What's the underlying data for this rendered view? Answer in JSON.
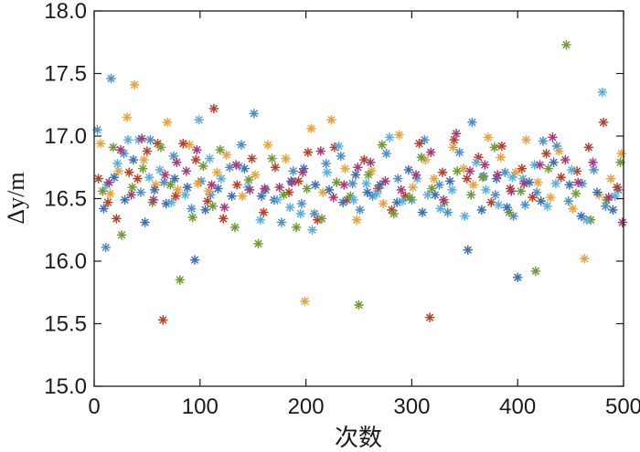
{
  "chart_data": {
    "type": "scatter",
    "title": "",
    "xlabel": "次数",
    "ylabel": "Δy/m",
    "xlim": [
      0,
      500
    ],
    "ylim": [
      15.0,
      18.0
    ],
    "x_ticks": [
      "0",
      "100",
      "200",
      "300",
      "400",
      "500"
    ],
    "y_ticks": [
      "15.0",
      "15.5",
      "16.0",
      "16.5",
      "17.0",
      "17.5",
      "18.0"
    ],
    "grid": false,
    "legend": "none",
    "marker": "asterisk",
    "series": [
      {
        "color": "#4f8fc6",
        "points": [
          [
            3,
            17.05
          ],
          [
            11,
            16.11
          ],
          [
            16,
            17.46
          ],
          [
            28,
            16.86
          ],
          [
            44,
            16.55
          ],
          [
            53,
            16.97
          ],
          [
            66,
            16.63
          ],
          [
            75,
            16.84
          ],
          [
            92,
            16.42
          ],
          [
            101,
            16.64
          ],
          [
            110,
            16.53
          ],
          [
            128,
            16.75
          ],
          [
            139,
            16.93
          ],
          [
            151,
            17.18
          ],
          [
            162,
            16.57
          ],
          [
            177,
            16.31
          ],
          [
            188,
            16.72
          ],
          [
            196,
            16.46
          ],
          [
            208,
            16.38
          ],
          [
            219,
            16.78
          ],
          [
            233,
            16.84
          ],
          [
            244,
            16.62
          ],
          [
            251,
            16.41
          ],
          [
            263,
            16.52
          ],
          [
            276,
            16.86
          ],
          [
            287,
            16.66
          ],
          [
            300,
            16.49
          ],
          [
            312,
            16.97
          ],
          [
            326,
            16.61
          ],
          [
            334,
            16.39
          ],
          [
            345,
            16.87
          ],
          [
            357,
            17.11
          ],
          [
            368,
            16.68
          ],
          [
            379,
            16.53
          ],
          [
            388,
            16.71
          ],
          [
            396,
            16.36
          ],
          [
            407,
            16.45
          ],
          [
            418,
            16.55
          ],
          [
            424,
            16.96
          ],
          [
            437,
            16.92
          ],
          [
            448,
            16.48
          ],
          [
            461,
            16.62
          ],
          [
            472,
            16.73
          ],
          [
            483,
            16.44
          ],
          [
            495,
            16.57
          ]
        ]
      },
      {
        "color": "#e8a33d",
        "points": [
          [
            6,
            16.94
          ],
          [
            15,
            16.54
          ],
          [
            23,
            16.72
          ],
          [
            31,
            17.15
          ],
          [
            38,
            17.41
          ],
          [
            47,
            16.81
          ],
          [
            58,
            16.61
          ],
          [
            69,
            17.11
          ],
          [
            79,
            16.57
          ],
          [
            90,
            16.93
          ],
          [
            98,
            16.62
          ],
          [
            108,
            16.56
          ],
          [
            116,
            16.71
          ],
          [
            125,
            16.85
          ],
          [
            140,
            16.52
          ],
          [
            152,
            16.69
          ],
          [
            164,
            16.93
          ],
          [
            181,
            16.82
          ],
          [
            199,
            15.68
          ],
          [
            205,
            17.06
          ],
          [
            216,
            16.55
          ],
          [
            224,
            17.13
          ],
          [
            237,
            16.74
          ],
          [
            248,
            16.33
          ],
          [
            262,
            16.72
          ],
          [
            273,
            16.46
          ],
          [
            288,
            17.01
          ],
          [
            301,
            16.59
          ],
          [
            313,
            16.81
          ],
          [
            321,
            16.66
          ],
          [
            339,
            16.91
          ],
          [
            349,
            16.74
          ],
          [
            358,
            16.61
          ],
          [
            372,
            16.99
          ],
          [
            384,
            16.83
          ],
          [
            398,
            16.71
          ],
          [
            408,
            16.97
          ],
          [
            419,
            16.63
          ],
          [
            431,
            16.51
          ],
          [
            439,
            16.88
          ],
          [
            452,
            16.42
          ],
          [
            463,
            16.02
          ],
          [
            477,
            16.53
          ],
          [
            488,
            16.66
          ],
          [
            498,
            16.86
          ]
        ]
      },
      {
        "color": "#b8412b",
        "points": [
          [
            4,
            16.66
          ],
          [
            13,
            16.47
          ],
          [
            21,
            16.34
          ],
          [
            33,
            16.71
          ],
          [
            41,
            16.66
          ],
          [
            50,
            16.88
          ],
          [
            60,
            16.94
          ],
          [
            65,
            15.53
          ],
          [
            77,
            16.52
          ],
          [
            84,
            16.94
          ],
          [
            96,
            16.81
          ],
          [
            107,
            16.48
          ],
          [
            113,
            17.22
          ],
          [
            122,
            16.34
          ],
          [
            135,
            16.61
          ],
          [
            149,
            16.82
          ],
          [
            160,
            16.39
          ],
          [
            171,
            16.75
          ],
          [
            184,
            16.55
          ],
          [
            193,
            16.64
          ],
          [
            202,
            16.87
          ],
          [
            211,
            16.33
          ],
          [
            227,
            16.91
          ],
          [
            239,
            16.49
          ],
          [
            255,
            16.81
          ],
          [
            268,
            16.58
          ],
          [
            281,
            16.41
          ],
          [
            294,
            16.52
          ],
          [
            307,
            16.94
          ],
          [
            317,
            15.55
          ],
          [
            329,
            16.71
          ],
          [
            340,
            16.97
          ],
          [
            352,
            16.66
          ],
          [
            363,
            16.83
          ],
          [
            375,
            16.47
          ],
          [
            385,
            16.92
          ],
          [
            393,
            16.58
          ],
          [
            404,
            16.74
          ],
          [
            414,
            16.51
          ],
          [
            427,
            16.86
          ],
          [
            441,
            16.67
          ],
          [
            456,
            16.72
          ],
          [
            467,
            16.91
          ],
          [
            481,
            17.11
          ],
          [
            494,
            16.59
          ]
        ]
      },
      {
        "color": "#6f9a35",
        "points": [
          [
            8,
            16.56
          ],
          [
            18,
            16.91
          ],
          [
            26,
            16.21
          ],
          [
            36,
            16.59
          ],
          [
            46,
            16.74
          ],
          [
            55,
            16.47
          ],
          [
            63,
            16.91
          ],
          [
            72,
            16.61
          ],
          [
            81,
            15.85
          ],
          [
            93,
            16.35
          ],
          [
            103,
            16.76
          ],
          [
            112,
            16.44
          ],
          [
            119,
            16.89
          ],
          [
            133,
            16.27
          ],
          [
            146,
            16.65
          ],
          [
            155,
            16.14
          ],
          [
            168,
            16.82
          ],
          [
            179,
            16.53
          ],
          [
            191,
            16.27
          ],
          [
            201,
            16.58
          ],
          [
            215,
            16.34
          ],
          [
            229,
            16.63
          ],
          [
            242,
            16.52
          ],
          [
            250,
            15.65
          ],
          [
            259,
            16.69
          ],
          [
            272,
            16.93
          ],
          [
            283,
            16.38
          ],
          [
            298,
            16.51
          ],
          [
            309,
            16.83
          ],
          [
            319,
            16.58
          ],
          [
            331,
            16.47
          ],
          [
            343,
            16.72
          ],
          [
            356,
            16.53
          ],
          [
            367,
            16.67
          ],
          [
            378,
            16.91
          ],
          [
            392,
            16.39
          ],
          [
            403,
            16.56
          ],
          [
            417,
            15.92
          ],
          [
            429,
            16.74
          ],
          [
            446,
            17.73
          ],
          [
            455,
            16.54
          ],
          [
            469,
            16.33
          ],
          [
            484,
            16.49
          ],
          [
            497,
            16.79
          ]
        ]
      },
      {
        "color": "#3d6fb3",
        "points": [
          [
            9,
            16.42
          ],
          [
            19,
            16.67
          ],
          [
            29,
            16.49
          ],
          [
            37,
            16.81
          ],
          [
            48,
            16.31
          ],
          [
            57,
            16.57
          ],
          [
            68,
            16.46
          ],
          [
            76,
            16.66
          ],
          [
            88,
            16.59
          ],
          [
            95,
            16.01
          ],
          [
            105,
            16.41
          ],
          [
            117,
            16.58
          ],
          [
            130,
            16.52
          ],
          [
            142,
            16.74
          ],
          [
            158,
            16.52
          ],
          [
            170,
            16.49
          ],
          [
            186,
            16.64
          ],
          [
            198,
            16.74
          ],
          [
            209,
            16.61
          ],
          [
            222,
            16.57
          ],
          [
            235,
            16.47
          ],
          [
            247,
            16.69
          ],
          [
            258,
            16.55
          ],
          [
            270,
            16.61
          ],
          [
            286,
            16.47
          ],
          [
            297,
            16.73
          ],
          [
            310,
            16.39
          ],
          [
            322,
            16.53
          ],
          [
            336,
            16.64
          ],
          [
            353,
            16.09
          ],
          [
            366,
            16.41
          ],
          [
            380,
            16.66
          ],
          [
            390,
            16.43
          ],
          [
            400,
            15.87
          ],
          [
            411,
            16.63
          ],
          [
            422,
            16.48
          ],
          [
            434,
            16.79
          ],
          [
            449,
            16.61
          ],
          [
            460,
            16.36
          ],
          [
            475,
            16.55
          ],
          [
            490,
            16.41
          ]
        ]
      },
      {
        "color": "#5aaee0",
        "points": [
          [
            12,
            16.61
          ],
          [
            22,
            16.78
          ],
          [
            32,
            16.97
          ],
          [
            42,
            16.97
          ],
          [
            52,
            16.67
          ],
          [
            62,
            16.73
          ],
          [
            73,
            16.47
          ],
          [
            86,
            16.53
          ],
          [
            99,
            17.13
          ],
          [
            109,
            16.82
          ],
          [
            120,
            16.66
          ],
          [
            137,
            16.76
          ],
          [
            145,
            16.59
          ],
          [
            157,
            16.33
          ],
          [
            173,
            16.49
          ],
          [
            185,
            16.43
          ],
          [
            195,
            16.38
          ],
          [
            206,
            16.25
          ],
          [
            220,
            16.71
          ],
          [
            231,
            16.92
          ],
          [
            245,
            16.49
          ],
          [
            257,
            16.62
          ],
          [
            267,
            16.54
          ],
          [
            279,
            16.99
          ],
          [
            291,
            16.48
          ],
          [
            305,
            16.66
          ],
          [
            315,
            16.53
          ],
          [
            327,
            16.42
          ],
          [
            338,
            16.57
          ],
          [
            350,
            16.36
          ],
          [
            361,
            16.79
          ],
          [
            370,
            16.57
          ],
          [
            382,
            16.45
          ],
          [
            395,
            16.67
          ],
          [
            405,
            16.66
          ],
          [
            416,
            16.77
          ],
          [
            428,
            16.44
          ],
          [
            436,
            16.62
          ],
          [
            451,
            16.73
          ],
          [
            465,
            16.33
          ],
          [
            480,
            17.35
          ],
          [
            492,
            16.52
          ]
        ]
      },
      {
        "color": "#a83a7c",
        "points": [
          [
            14,
            16.63
          ],
          [
            25,
            16.89
          ],
          [
            35,
            16.53
          ],
          [
            45,
            16.98
          ],
          [
            56,
            16.49
          ],
          [
            67,
            16.69
          ],
          [
            78,
            16.79
          ],
          [
            87,
            16.72
          ],
          [
            97,
            16.89
          ],
          [
            111,
            16.61
          ],
          [
            123,
            16.43
          ],
          [
            134,
            16.77
          ],
          [
            147,
            16.57
          ],
          [
            161,
            16.58
          ],
          [
            175,
            16.59
          ],
          [
            187,
            16.63
          ],
          [
            197,
            16.71
          ],
          [
            214,
            16.88
          ],
          [
            226,
            16.51
          ],
          [
            236,
            16.61
          ],
          [
            249,
            16.75
          ],
          [
            261,
            16.79
          ],
          [
            275,
            16.64
          ],
          [
            290,
            16.57
          ],
          [
            304,
            16.69
          ],
          [
            318,
            16.87
          ],
          [
            330,
            16.49
          ],
          [
            342,
            17.02
          ],
          [
            355,
            16.72
          ],
          [
            369,
            16.77
          ],
          [
            381,
            16.69
          ],
          [
            394,
            16.56
          ],
          [
            406,
            16.62
          ],
          [
            421,
            16.77
          ],
          [
            433,
            16.99
          ],
          [
            445,
            16.81
          ],
          [
            457,
            16.63
          ],
          [
            471,
            16.79
          ],
          [
            486,
            16.51
          ],
          [
            499,
            16.31
          ]
        ]
      }
    ]
  }
}
